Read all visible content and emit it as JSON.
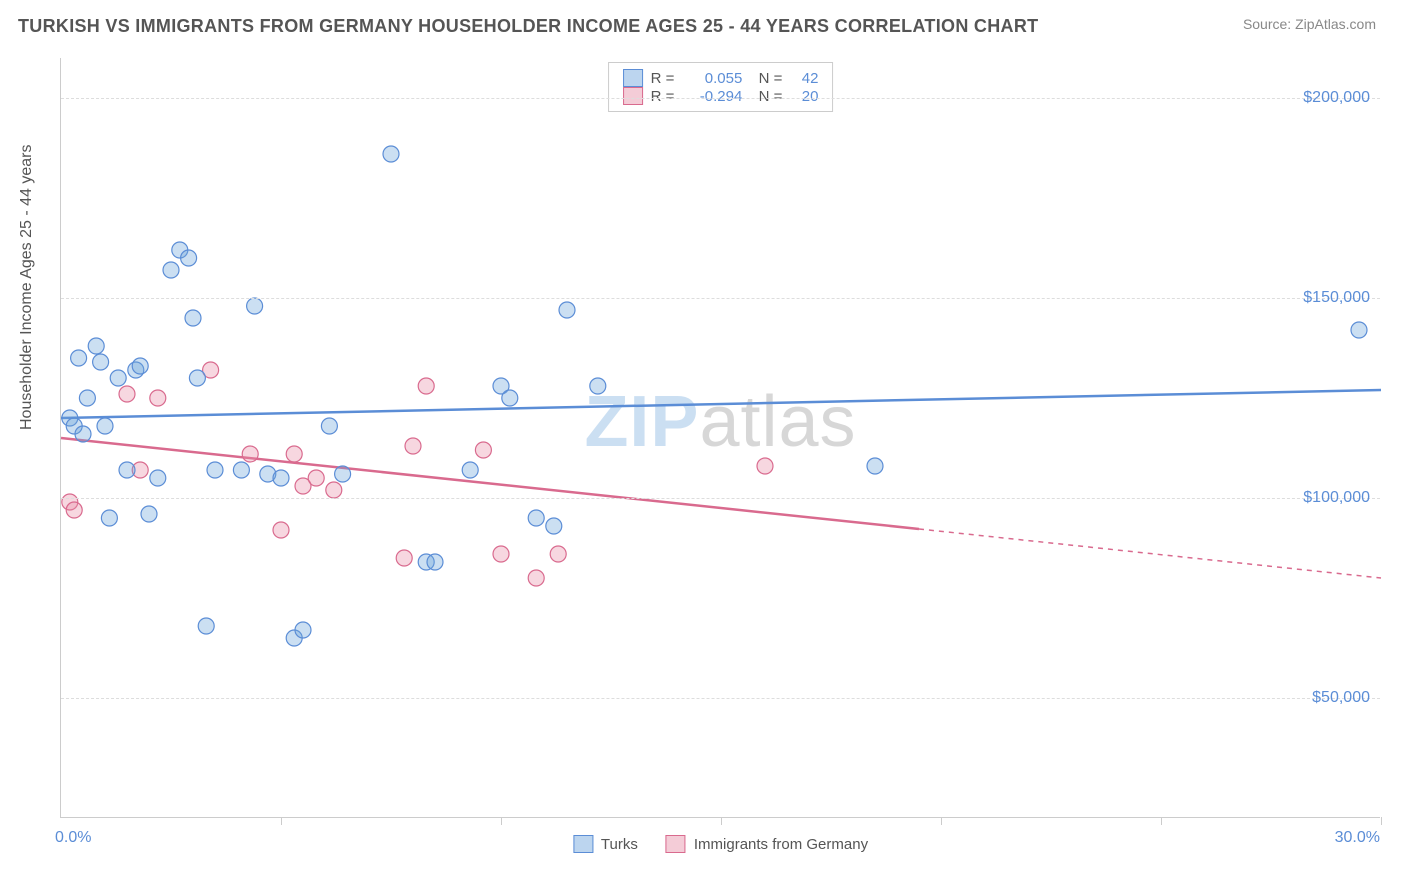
{
  "header": {
    "title": "TURKISH VS IMMIGRANTS FROM GERMANY HOUSEHOLDER INCOME AGES 25 - 44 YEARS CORRELATION CHART",
    "source": "Source: ZipAtlas.com"
  },
  "chart": {
    "type": "scatter",
    "ylabel": "Householder Income Ages 25 - 44 years",
    "xlim": [
      0,
      30
    ],
    "ylim": [
      20000,
      210000
    ],
    "yticks": [
      50000,
      100000,
      150000,
      200000
    ],
    "ytick_labels": [
      "$50,000",
      "$100,000",
      "$150,000",
      "$200,000"
    ],
    "xticks": [
      0,
      5,
      10,
      15,
      20,
      25,
      30
    ],
    "xaxis_left_label": "0.0%",
    "xaxis_right_label": "30.0%",
    "background_color": "#ffffff",
    "grid_color": "#dddddd",
    "axis_color": "#cccccc",
    "tick_label_color": "#5b8dd6",
    "point_radius": 8,
    "series": {
      "turks": {
        "label": "Turks",
        "color_fill": "rgba(107,162,219,0.35)",
        "color_stroke": "#5b8dd6",
        "r": "0.055",
        "n": "42",
        "trend": {
          "y_start": 120000,
          "y_end": 127000,
          "x_start": 0,
          "x_end": 30,
          "solid_to_x": 30
        },
        "points": [
          [
            0.2,
            120000
          ],
          [
            0.3,
            118000
          ],
          [
            0.4,
            135000
          ],
          [
            0.5,
            116000
          ],
          [
            0.6,
            125000
          ],
          [
            0.8,
            138000
          ],
          [
            0.9,
            134000
          ],
          [
            1.0,
            118000
          ],
          [
            1.1,
            95000
          ],
          [
            1.3,
            130000
          ],
          [
            1.5,
            107000
          ],
          [
            1.7,
            132000
          ],
          [
            1.8,
            133000
          ],
          [
            2.0,
            96000
          ],
          [
            2.2,
            105000
          ],
          [
            2.5,
            157000
          ],
          [
            2.7,
            162000
          ],
          [
            2.9,
            160000
          ],
          [
            3.0,
            145000
          ],
          [
            3.1,
            130000
          ],
          [
            3.3,
            68000
          ],
          [
            3.5,
            107000
          ],
          [
            4.1,
            107000
          ],
          [
            4.4,
            148000
          ],
          [
            4.7,
            106000
          ],
          [
            5.0,
            105000
          ],
          [
            5.3,
            65000
          ],
          [
            5.5,
            67000
          ],
          [
            6.1,
            118000
          ],
          [
            6.4,
            106000
          ],
          [
            7.5,
            186000
          ],
          [
            8.3,
            84000
          ],
          [
            8.5,
            84000
          ],
          [
            9.3,
            107000
          ],
          [
            10.0,
            128000
          ],
          [
            10.2,
            125000
          ],
          [
            10.8,
            95000
          ],
          [
            11.2,
            93000
          ],
          [
            11.5,
            147000
          ],
          [
            12.2,
            128000
          ],
          [
            18.5,
            108000
          ],
          [
            29.5,
            142000
          ]
        ]
      },
      "germany": {
        "label": "Immigrants from Germany",
        "color_fill": "rgba(231,141,166,0.35)",
        "color_stroke": "#d96a8e",
        "r": "-0.294",
        "n": "20",
        "trend": {
          "y_start": 115000,
          "y_end": 80000,
          "x_start": 0,
          "x_end": 30,
          "solid_to_x": 19.5
        },
        "points": [
          [
            0.2,
            99000
          ],
          [
            0.3,
            97000
          ],
          [
            1.5,
            126000
          ],
          [
            1.8,
            107000
          ],
          [
            2.2,
            125000
          ],
          [
            3.4,
            132000
          ],
          [
            4.3,
            111000
          ],
          [
            5.0,
            92000
          ],
          [
            5.3,
            111000
          ],
          [
            5.5,
            103000
          ],
          [
            5.8,
            105000
          ],
          [
            6.2,
            102000
          ],
          [
            7.8,
            85000
          ],
          [
            8.0,
            113000
          ],
          [
            8.3,
            128000
          ],
          [
            9.6,
            112000
          ],
          [
            10.0,
            86000
          ],
          [
            10.8,
            80000
          ],
          [
            11.3,
            86000
          ],
          [
            16.0,
            108000
          ]
        ]
      }
    },
    "watermark": {
      "part1": "ZIP",
      "part2": "atlas"
    }
  }
}
